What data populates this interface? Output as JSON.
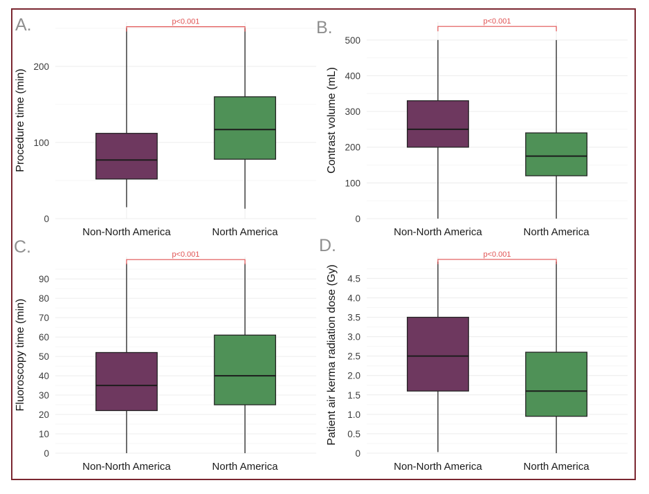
{
  "figure": {
    "border_color": "#7a2630",
    "background": "#ffffff",
    "panel_letter_color": "#8f8f8f",
    "significance_color": "#e05252",
    "box_colors": {
      "non_north_america": "#6e385f",
      "north_america": "#4f9157"
    },
    "gridline_major_color": "#ececec",
    "gridline_minor_color": "#f6f6f6"
  },
  "chart_data": [
    {
      "type": "box",
      "label": "A.",
      "ylabel": "Procedure time (min)",
      "ylim": [
        0,
        258
      ],
      "ytick_values": [
        0,
        100,
        200
      ],
      "ytick_labels": [
        "0",
        "100",
        "200"
      ],
      "minor_values": [
        50,
        150,
        250
      ],
      "categories": [
        "Non-North America",
        "North America"
      ],
      "p_label": "p<0.001",
      "bracket_value": 252,
      "boxes": [
        {
          "group": "Non-North America",
          "color": "#6e385f",
          "whisker_low": 15,
          "q1": 52,
          "median": 77,
          "q3": 112,
          "whisker_high": 250
        },
        {
          "group": "North America",
          "color": "#4f9157",
          "whisker_low": 13,
          "q1": 78,
          "median": 117,
          "q3": 160,
          "whisker_high": 250
        }
      ]
    },
    {
      "type": "box",
      "label": "B.",
      "ylabel": "Contrast volume (mL)",
      "ylim": [
        0,
        550
      ],
      "ytick_values": [
        0,
        100,
        200,
        300,
        400,
        500
      ],
      "ytick_labels": [
        "0",
        "100",
        "200",
        "300",
        "400",
        "500"
      ],
      "minor_values": [
        50,
        150,
        250,
        350,
        450
      ],
      "categories": [
        "Non-North America",
        "North America"
      ],
      "p_label": "p<0.001",
      "bracket_value": 538,
      "boxes": [
        {
          "group": "Non-North America",
          "color": "#6e385f",
          "whisker_low": 0,
          "q1": 200,
          "median": 250,
          "q3": 330,
          "whisker_high": 500
        },
        {
          "group": "North America",
          "color": "#4f9157",
          "whisker_low": 0,
          "q1": 120,
          "median": 175,
          "q3": 240,
          "whisker_high": 500
        }
      ]
    },
    {
      "type": "box",
      "label": "C.",
      "ylabel": "Fluoroscopy time (min)",
      "ylim": [
        0,
        101.5
      ],
      "ytick_values": [
        0,
        10,
        20,
        30,
        40,
        50,
        60,
        70,
        80,
        90
      ],
      "ytick_labels": [
        "0",
        "10",
        "20",
        "30",
        "40",
        "50",
        "60",
        "70",
        "80",
        "90"
      ],
      "minor_values": [
        5,
        15,
        25,
        35,
        45,
        55,
        65,
        75,
        85,
        95
      ],
      "categories": [
        "Non-North America",
        "North America"
      ],
      "p_label": "p<0.001",
      "bracket_value": 100,
      "boxes": [
        {
          "group": "Non-North America",
          "color": "#6e385f",
          "whisker_low": 0,
          "q1": 22,
          "median": 35,
          "q3": 52,
          "whisker_high": 98
        },
        {
          "group": "North America",
          "color": "#4f9157",
          "whisker_low": 0,
          "q1": 25,
          "median": 40,
          "q3": 61,
          "whisker_high": 98
        }
      ]
    },
    {
      "type": "box",
      "label": "D.",
      "ylabel": "Patient air kerma radiation dose (Gy)",
      "ylim": [
        0,
        5.06
      ],
      "ytick_values": [
        0,
        0.5,
        1.0,
        1.5,
        2.0,
        2.5,
        3.0,
        3.5,
        4.0,
        4.5
      ],
      "ytick_labels": [
        "0",
        "0.5",
        "1.0",
        "1.5",
        "2.0",
        "2.5",
        "3.0",
        "3.5",
        "4.0",
        "4.5"
      ],
      "minor_values": [
        0.25,
        0.75,
        1.25,
        1.75,
        2.25,
        2.75,
        3.25,
        3.75,
        4.25,
        4.75
      ],
      "categories": [
        "Non-North America",
        "North America"
      ],
      "p_label": "p<0.001",
      "bracket_value": 4.99,
      "boxes": [
        {
          "group": "Non-North America",
          "color": "#6e385f",
          "whisker_low": 0.03,
          "q1": 1.6,
          "median": 2.5,
          "q3": 3.5,
          "whisker_high": 4.93
        },
        {
          "group": "North America",
          "color": "#4f9157",
          "whisker_low": 0,
          "q1": 0.95,
          "median": 1.6,
          "q3": 2.6,
          "whisker_high": 4.93
        }
      ]
    }
  ]
}
